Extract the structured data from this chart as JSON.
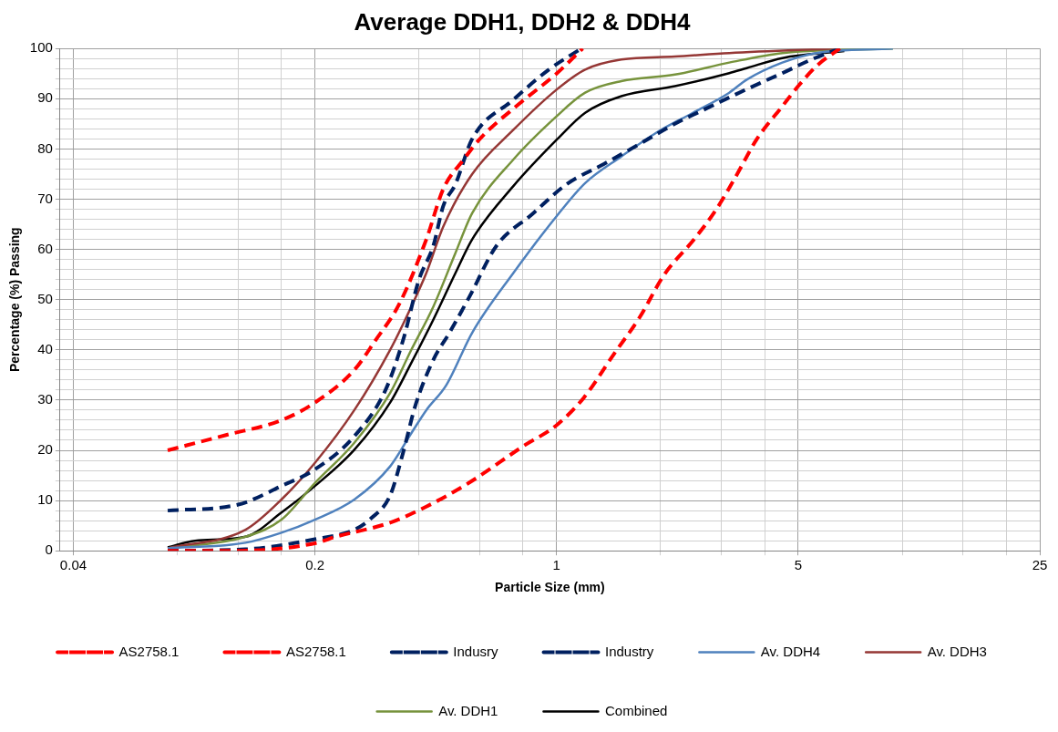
{
  "chart_data": {
    "type": "line",
    "title": "Average DDH1, DDH2 & DDH4",
    "xlabel": "Particle Size (mm)",
    "ylabel": "Percentage (%) Passing",
    "log": "x",
    "grid": true,
    "legend": "bottom",
    "marker": "none",
    "xlim": [
      0.0366,
      25
    ],
    "xticks": [
      0.04,
      {
        "value": 0.08,
        "label": null
      },
      {
        "value": 0.12,
        "label": null
      },
      {
        "value": 0.16,
        "label": null
      },
      0.2,
      {
        "value": 0.4,
        "label": null
      },
      {
        "value": 0.6,
        "label": null
      },
      {
        "value": 0.8,
        "label": null
      },
      1,
      {
        "value": 2,
        "label": null
      },
      {
        "value": 3,
        "label": null
      },
      {
        "value": 4,
        "label": null
      },
      5,
      {
        "value": 10,
        "label": null
      },
      {
        "value": 15,
        "label": null
      },
      {
        "value": 20,
        "label": null
      },
      25
    ],
    "ylim": [
      0,
      100
    ],
    "yticks": [
      0,
      {
        "value": 2,
        "label": null
      },
      {
        "value": 4,
        "label": null
      },
      {
        "value": 6,
        "label": null
      },
      {
        "value": 8,
        "label": null
      },
      10,
      {
        "value": 12,
        "label": null
      },
      {
        "value": 14,
        "label": null
      },
      {
        "value": 16,
        "label": null
      },
      {
        "value": 18,
        "label": null
      },
      20,
      {
        "value": 22,
        "label": null
      },
      {
        "value": 24,
        "label": null
      },
      {
        "value": 26,
        "label": null
      },
      {
        "value": 28,
        "label": null
      },
      30,
      {
        "value": 32,
        "label": null
      },
      {
        "value": 34,
        "label": null
      },
      {
        "value": 36,
        "label": null
      },
      {
        "value": 38,
        "label": null
      },
      40,
      {
        "value": 42,
        "label": null
      },
      {
        "value": 44,
        "label": null
      },
      {
        "value": 46,
        "label": null
      },
      {
        "value": 48,
        "label": null
      },
      50,
      {
        "value": 52,
        "label": null
      },
      {
        "value": 54,
        "label": null
      },
      {
        "value": 56,
        "label": null
      },
      {
        "value": 58,
        "label": null
      },
      60,
      {
        "value": 62,
        "label": null
      },
      {
        "value": 64,
        "label": null
      },
      {
        "value": 66,
        "label": null
      },
      {
        "value": 68,
        "label": null
      },
      70,
      {
        "value": 72,
        "label": null
      },
      {
        "value": 74,
        "label": null
      },
      {
        "value": 76,
        "label": null
      },
      {
        "value": 78,
        "label": null
      },
      80,
      {
        "value": 82,
        "label": null
      },
      {
        "value": 84,
        "label": null
      },
      {
        "value": 86,
        "label": null
      },
      {
        "value": 88,
        "label": null
      },
      90,
      {
        "value": 92,
        "label": null
      },
      {
        "value": 94,
        "label": null
      },
      {
        "value": 96,
        "label": null
      },
      {
        "value": 98,
        "label": null
      },
      100
    ],
    "series": [
      {
        "name": "AS2758.1",
        "color": "#ff0000",
        "line_style": "dashed",
        "x": [
          0.075,
          0.11,
          0.16,
          0.2,
          0.26,
          0.3,
          0.35,
          0.42,
          0.47,
          0.54,
          0.6,
          0.78,
          1,
          1.19
        ],
        "values": [
          20,
          23,
          26,
          29.5,
          36,
          42,
          49,
          62,
          72,
          78,
          82,
          89,
          95,
          100
        ]
      },
      {
        "name": "AS2758.1",
        "color": "#ff0000",
        "line_style": "dashed",
        "x": [
          0.075,
          0.12,
          0.2,
          0.23,
          0.33,
          0.42,
          0.56,
          0.8,
          1,
          1.2,
          1.46,
          1.74,
          2.05,
          2.5,
          2.9,
          3.3,
          3.8,
          4.5,
          5,
          5.65,
          6.6
        ],
        "values": [
          0,
          0,
          1.5,
          2.8,
          5.6,
          8.8,
          13.6,
          20.8,
          25,
          30.5,
          39,
          46.5,
          55,
          62,
          68,
          74.5,
          82,
          88.5,
          92.5,
          96.5,
          100
        ]
      },
      {
        "name": "Indusry",
        "color": "#002060",
        "line_style": "dashed",
        "x": [
          0.075,
          0.12,
          0.16,
          0.2,
          0.26,
          0.32,
          0.36,
          0.4,
          0.44,
          0.47,
          0.51,
          0.57,
          0.75,
          0.95,
          1.18
        ],
        "values": [
          8,
          9.2,
          12.9,
          16.2,
          22.8,
          32,
          42,
          54,
          60.7,
          68.6,
          73,
          82,
          89.8,
          95.8,
          100
        ]
      },
      {
        "name": "Industry",
        "color": "#002060",
        "line_style": "dashed",
        "x": [
          0.075,
          0.126,
          0.2,
          0.26,
          0.29,
          0.33,
          0.36,
          0.39,
          0.44,
          0.49,
          0.56,
          0.67,
          0.85,
          1.07,
          1.37,
          1.74,
          2.2,
          2.8,
          3.55,
          4.5,
          5.46,
          6.6
        ],
        "values": [
          0,
          0.3,
          2.3,
          4.2,
          6.4,
          11,
          19.6,
          28.8,
          38,
          43.4,
          50.6,
          60.7,
          67,
          73,
          77,
          81,
          85,
          88.5,
          91.9,
          95.1,
          97.8,
          100
        ]
      },
      {
        "name": "Av. DDH4",
        "color": "#4f81bd",
        "line_style": "solid",
        "x": [
          0.075,
          0.126,
          0.16,
          0.2,
          0.26,
          0.33,
          0.38,
          0.42,
          0.48,
          0.57,
          0.75,
          1,
          1.21,
          1.54,
          1.95,
          2.48,
          3.16,
          3.55,
          4.5,
          5.65,
          9.4
        ],
        "values": [
          0.5,
          1.6,
          3.6,
          6.2,
          10.2,
          16.8,
          23.4,
          28,
          33,
          43.4,
          55.3,
          66.6,
          73.2,
          78.5,
          83.3,
          87.2,
          91.2,
          93.8,
          97.2,
          99.1,
          100
        ]
      },
      {
        "name": "Av. DDH3",
        "color": "#953735",
        "line_style": "solid",
        "x": [
          0.075,
          0.126,
          0.16,
          0.2,
          0.26,
          0.33,
          0.38,
          0.42,
          0.47,
          0.57,
          0.75,
          1,
          1.21,
          1.54,
          2.2,
          3.16,
          6.4
        ],
        "values": [
          0.5,
          4.2,
          10.2,
          17.5,
          28,
          40,
          48.6,
          55.3,
          64.5,
          75,
          83.8,
          91.8,
          95.8,
          97.8,
          98.4,
          99.1,
          100
        ]
      },
      {
        "name": "Av. DDH1",
        "color": "#77933c",
        "line_style": "solid",
        "x": [
          0.075,
          0.126,
          0.16,
          0.2,
          0.26,
          0.33,
          0.38,
          0.44,
          0.51,
          0.57,
          0.75,
          1,
          1.21,
          1.54,
          2.2,
          3.16,
          4.5,
          9.4
        ],
        "values": [
          0.5,
          2.8,
          6.2,
          13.5,
          21.5,
          31.4,
          40,
          48.6,
          59.3,
          67.2,
          77.9,
          86.5,
          91.2,
          93.5,
          94.8,
          97.2,
          99.1,
          100
        ]
      },
      {
        "name": "Combined",
        "color": "#000000",
        "line_style": "solid",
        "x": [
          0.075,
          0.09,
          0.126,
          0.16,
          0.2,
          0.26,
          0.33,
          0.38,
          0.44,
          0.51,
          0.57,
          0.75,
          1,
          1.21,
          1.54,
          2.2,
          3.16,
          3.55,
          4.5,
          6.8
        ],
        "values": [
          0.7,
          2,
          2.8,
          7.6,
          12.9,
          20.1,
          29.5,
          37.4,
          46,
          55.3,
          62,
          72.6,
          81.8,
          87.2,
          90.5,
          92.5,
          95.1,
          96.1,
          98.1,
          99.5
        ]
      }
    ]
  }
}
